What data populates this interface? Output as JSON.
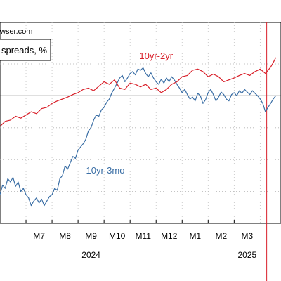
{
  "source_text": "wser.com",
  "legend_title": "spreads, %",
  "chart_data": {
    "type": "line",
    "x_ticks": [
      "M7",
      "M8",
      "M9",
      "M10",
      "M11",
      "M12",
      "M1",
      "M2",
      "M3"
    ],
    "year_labels": [
      {
        "text": "2024",
        "month_index": 8.5
      },
      {
        "text": "2025",
        "month_index": 14.5
      }
    ],
    "ylim": [
      -2.0,
      1.15
    ],
    "xlim": [
      5.0,
      15.8
    ],
    "reference_line_y": 0,
    "vertical_marker_x": 15.25,
    "grid": true,
    "series": [
      {
        "name": "10yr-2yr",
        "color": "#d9202a",
        "points": [
          [
            5.0,
            -0.48
          ],
          [
            5.2,
            -0.4
          ],
          [
            5.4,
            -0.38
          ],
          [
            5.6,
            -0.32
          ],
          [
            5.8,
            -0.35
          ],
          [
            6.0,
            -0.3
          ],
          [
            6.2,
            -0.25
          ],
          [
            6.4,
            -0.28
          ],
          [
            6.6,
            -0.2
          ],
          [
            6.8,
            -0.18
          ],
          [
            7.0,
            -0.12
          ],
          [
            7.2,
            -0.08
          ],
          [
            7.4,
            -0.05
          ],
          [
            7.6,
            -0.02
          ],
          [
            7.8,
            0.02
          ],
          [
            8.0,
            0.05
          ],
          [
            8.2,
            0.1
          ],
          [
            8.4,
            0.12
          ],
          [
            8.6,
            0.08
          ],
          [
            8.8,
            0.15
          ],
          [
            9.0,
            0.22
          ],
          [
            9.2,
            0.18
          ],
          [
            9.4,
            0.25
          ],
          [
            9.6,
            0.12
          ],
          [
            9.8,
            0.1
          ],
          [
            10.0,
            0.2
          ],
          [
            10.2,
            0.18
          ],
          [
            10.4,
            0.14
          ],
          [
            10.6,
            0.18
          ],
          [
            10.8,
            0.1
          ],
          [
            11.0,
            0.12
          ],
          [
            11.2,
            0.05
          ],
          [
            11.4,
            0.1
          ],
          [
            11.6,
            0.18
          ],
          [
            11.8,
            0.22
          ],
          [
            12.0,
            0.3
          ],
          [
            12.2,
            0.32
          ],
          [
            12.4,
            0.4
          ],
          [
            12.6,
            0.42
          ],
          [
            12.8,
            0.38
          ],
          [
            13.0,
            0.3
          ],
          [
            13.2,
            0.34
          ],
          [
            13.4,
            0.3
          ],
          [
            13.6,
            0.22
          ],
          [
            13.8,
            0.25
          ],
          [
            14.0,
            0.28
          ],
          [
            14.2,
            0.32
          ],
          [
            14.4,
            0.35
          ],
          [
            14.6,
            0.32
          ],
          [
            14.8,
            0.38
          ],
          [
            15.0,
            0.42
          ],
          [
            15.2,
            0.35
          ],
          [
            15.4,
            0.45
          ],
          [
            15.5,
            0.52
          ],
          [
            15.6,
            0.6
          ]
        ]
      },
      {
        "name": "10yr-3mo",
        "color": "#3a6ea5",
        "points": [
          [
            5.0,
            -1.55
          ],
          [
            5.1,
            -1.4
          ],
          [
            5.2,
            -1.45
          ],
          [
            5.3,
            -1.3
          ],
          [
            5.4,
            -1.35
          ],
          [
            5.5,
            -1.28
          ],
          [
            5.6,
            -1.42
          ],
          [
            5.7,
            -1.35
          ],
          [
            5.8,
            -1.5
          ],
          [
            5.9,
            -1.45
          ],
          [
            6.0,
            -1.55
          ],
          [
            6.1,
            -1.6
          ],
          [
            6.2,
            -1.72
          ],
          [
            6.3,
            -1.65
          ],
          [
            6.4,
            -1.6
          ],
          [
            6.5,
            -1.68
          ],
          [
            6.6,
            -1.62
          ],
          [
            6.7,
            -1.72
          ],
          [
            6.8,
            -1.65
          ],
          [
            6.9,
            -1.58
          ],
          [
            7.0,
            -1.55
          ],
          [
            7.1,
            -1.45
          ],
          [
            7.2,
            -1.48
          ],
          [
            7.3,
            -1.3
          ],
          [
            7.4,
            -1.25
          ],
          [
            7.5,
            -1.1
          ],
          [
            7.6,
            -1.15
          ],
          [
            7.7,
            -1.05
          ],
          [
            7.8,
            -0.95
          ],
          [
            7.9,
            -0.98
          ],
          [
            8.0,
            -0.85
          ],
          [
            8.1,
            -0.8
          ],
          [
            8.2,
            -0.75
          ],
          [
            8.3,
            -0.68
          ],
          [
            8.4,
            -0.55
          ],
          [
            8.5,
            -0.5
          ],
          [
            8.6,
            -0.38
          ],
          [
            8.7,
            -0.3
          ],
          [
            8.8,
            -0.32
          ],
          [
            8.9,
            -0.22
          ],
          [
            9.0,
            -0.18
          ],
          [
            9.1,
            -0.1
          ],
          [
            9.2,
            -0.05
          ],
          [
            9.3,
            0.05
          ],
          [
            9.4,
            0.12
          ],
          [
            9.5,
            0.2
          ],
          [
            9.6,
            0.28
          ],
          [
            9.7,
            0.32
          ],
          [
            9.8,
            0.22
          ],
          [
            9.9,
            0.28
          ],
          [
            10.0,
            0.35
          ],
          [
            10.1,
            0.38
          ],
          [
            10.2,
            0.33
          ],
          [
            10.3,
            0.42
          ],
          [
            10.4,
            0.4
          ],
          [
            10.5,
            0.44
          ],
          [
            10.6,
            0.35
          ],
          [
            10.7,
            0.3
          ],
          [
            10.8,
            0.36
          ],
          [
            10.9,
            0.28
          ],
          [
            11.0,
            0.22
          ],
          [
            11.1,
            0.18
          ],
          [
            11.2,
            0.26
          ],
          [
            11.3,
            0.2
          ],
          [
            11.4,
            0.28
          ],
          [
            11.5,
            0.22
          ],
          [
            11.6,
            0.3
          ],
          [
            11.7,
            0.25
          ],
          [
            11.8,
            0.18
          ],
          [
            11.9,
            0.12
          ],
          [
            12.0,
            0.05
          ],
          [
            12.1,
            0.1
          ],
          [
            12.2,
            0.02
          ],
          [
            12.3,
            -0.05
          ],
          [
            12.4,
            -0.02
          ],
          [
            12.5,
            -0.08
          ],
          [
            12.6,
            0.04
          ],
          [
            12.7,
            0.0
          ],
          [
            12.8,
            -0.12
          ],
          [
            12.9,
            -0.06
          ],
          [
            13.0,
            0.05
          ],
          [
            13.1,
            0.1
          ],
          [
            13.2,
            0.02
          ],
          [
            13.3,
            -0.08
          ],
          [
            13.4,
            -0.02
          ],
          [
            13.5,
            0.06
          ],
          [
            13.6,
            0.02
          ],
          [
            13.7,
            -0.05
          ],
          [
            13.8,
            -0.08
          ],
          [
            13.9,
            0.02
          ],
          [
            14.0,
            0.05
          ],
          [
            14.1,
            0.0
          ],
          [
            14.2,
            0.08
          ],
          [
            14.3,
            0.04
          ],
          [
            14.4,
            0.1
          ],
          [
            14.5,
            0.06
          ],
          [
            14.6,
            0.02
          ],
          [
            14.7,
            0.08
          ],
          [
            14.8,
            0.04
          ],
          [
            14.9,
            0.0
          ],
          [
            15.0,
            -0.05
          ],
          [
            15.1,
            -0.12
          ],
          [
            15.2,
            -0.25
          ],
          [
            15.3,
            -0.18
          ],
          [
            15.4,
            -0.12
          ],
          [
            15.5,
            -0.05
          ],
          [
            15.6,
            0.0
          ]
        ]
      }
    ],
    "series_labels": [
      {
        "text": "10yr-2yr",
        "x": 11.0,
        "y": 0.58
      },
      {
        "text": "10yr-3mo",
        "x": 9.05,
        "y": -1.22
      }
    ]
  }
}
